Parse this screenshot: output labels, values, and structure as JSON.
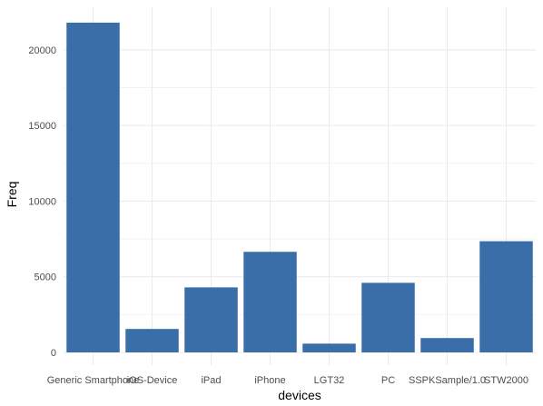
{
  "chart_data": {
    "type": "bar",
    "title": "",
    "xlabel": "devices",
    "ylabel": "Freq",
    "categories": [
      "Generic Smartphone",
      "iOS-Device",
      "iPad",
      "iPhone",
      "LGT32",
      "PC",
      "SSPKSample/1.0",
      "STW2000"
    ],
    "values": [
      21800,
      1550,
      4300,
      6650,
      580,
      4600,
      950,
      7350
    ],
    "ylim": [
      0,
      22500
    ],
    "yticks": [
      0,
      5000,
      10000,
      15000,
      20000
    ],
    "ytick_labels": [
      "0",
      "5000",
      "10000",
      "15000",
      "20000"
    ],
    "grid": true,
    "legend": "none",
    "bar_color": "#3a6ea8",
    "grid_color": "#ebebeb"
  }
}
